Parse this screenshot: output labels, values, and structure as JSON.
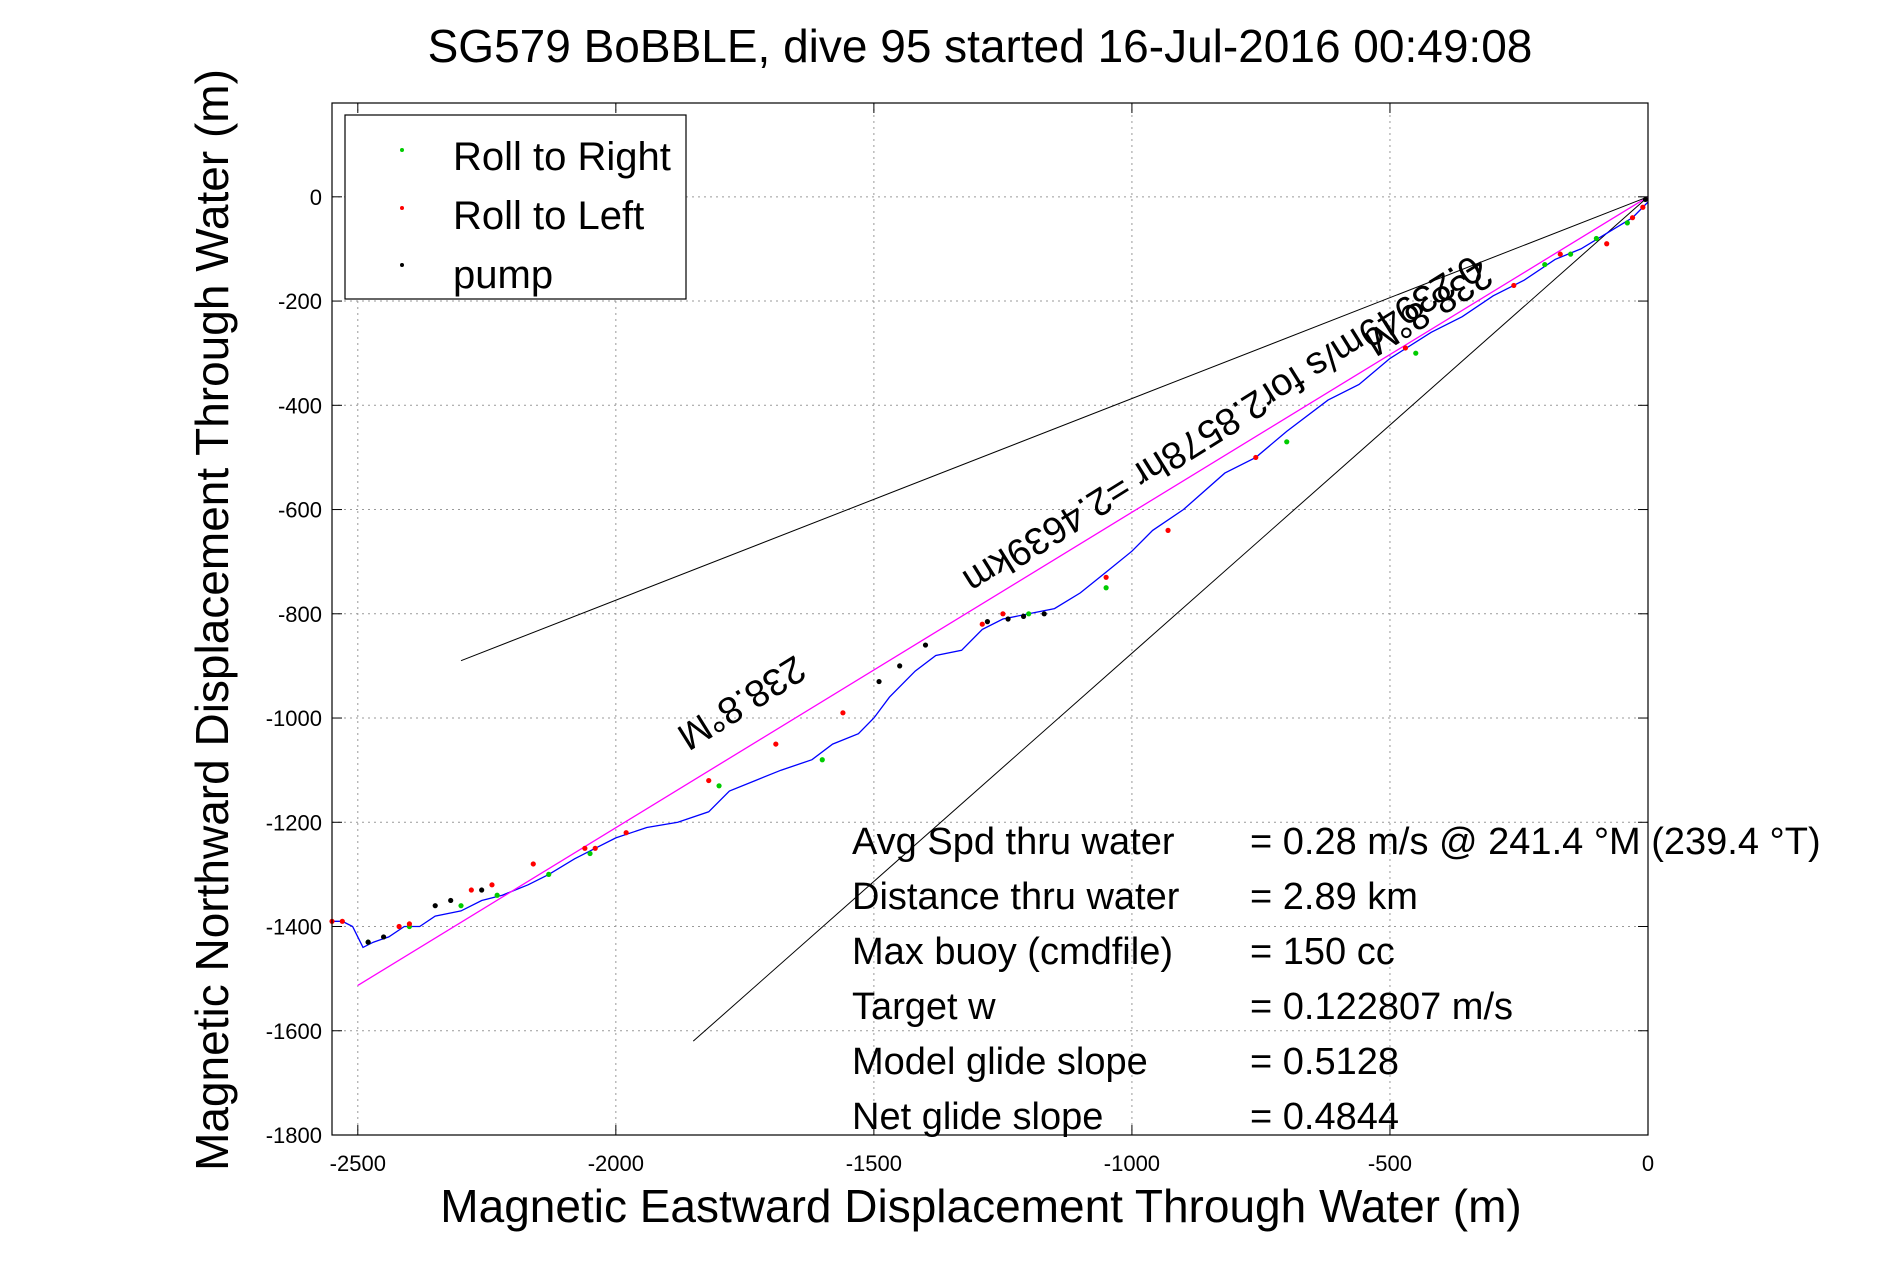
{
  "chart_data": {
    "type": "line",
    "title": "SG579 BoBBLE, dive 95 started 16-Jul-2016 00:49:08",
    "xlabel": "Magnetic Eastward Displacement Through Water (m)",
    "ylabel": "Magnetic Northward Displacement Through Water (m)",
    "xlim": [
      -2550,
      0
    ],
    "ylim": [
      -1800,
      180
    ],
    "xticks": [
      -2500,
      -2000,
      -1500,
      -1000,
      -500,
      0
    ],
    "yticks": [
      0,
      -200,
      -400,
      -600,
      -800,
      -1000,
      -1200,
      -1400,
      -1600,
      -1800
    ],
    "xtick_labels": [
      "-2500",
      "-2000",
      "-1500",
      "-1000",
      "-500",
      "0"
    ],
    "ytick_labels": [
      "0",
      "-200",
      "-400",
      "-600",
      "-800",
      "-1000",
      "-1200",
      "-1400",
      "-1600",
      "-1800"
    ],
    "grid": true,
    "legend_position": "top-left",
    "legend": [
      {
        "label": "Roll to Right",
        "color": "#00cc00"
      },
      {
        "label": "Roll to Left",
        "color": "#ff0000"
      },
      {
        "label": "pump",
        "color": "#000000"
      }
    ],
    "series": [
      {
        "name": "track",
        "color": "#0000ff",
        "x": [
          0,
          -30,
          -80,
          -130,
          -180,
          -240,
          -300,
          -360,
          -420,
          -500,
          -560,
          -620,
          -700,
          -760,
          -820,
          -900,
          -960,
          -1000,
          -1050,
          -1100,
          -1150,
          -1200,
          -1250,
          -1290,
          -1330,
          -1380,
          -1420,
          -1470,
          -1500,
          -1530,
          -1580,
          -1620,
          -1680,
          -1730,
          -1780,
          -1820,
          -1880,
          -1940,
          -2000,
          -2040,
          -2080,
          -2130,
          -2170,
          -2220,
          -2260,
          -2300,
          -2350,
          -2380,
          -2410,
          -2440,
          -2470,
          -2490,
          -2500,
          -2510,
          -2530,
          -2550
        ],
        "y": [
          -10,
          -40,
          -70,
          -100,
          -120,
          -160,
          -190,
          -230,
          -260,
          -310,
          -360,
          -390,
          -450,
          -500,
          -530,
          -600,
          -640,
          -680,
          -720,
          -760,
          -790,
          -800,
          -810,
          -830,
          -870,
          -880,
          -910,
          -960,
          -1000,
          -1030,
          -1050,
          -1080,
          -1100,
          -1120,
          -1140,
          -1180,
          -1200,
          -1210,
          -1230,
          -1250,
          -1270,
          -1300,
          -1320,
          -1340,
          -1350,
          -1370,
          -1380,
          -1400,
          -1400,
          -1420,
          -1430,
          -1440,
          -1420,
          -1400,
          -1390,
          -1390
        ]
      },
      {
        "name": "heading",
        "color": "#ff00ff",
        "x": [
          0,
          -2500
        ],
        "y": [
          0,
          -1513
        ]
      }
    ],
    "markers": {
      "roll_to_right": {
        "color": "#00cc00",
        "x": [
          -40,
          -100,
          -150,
          -200,
          -450,
          -700,
          -1050,
          -1200,
          -1600,
          -1800,
          -2050,
          -2130,
          -2230,
          -2300,
          -2400,
          -2480
        ],
        "y": [
          -50,
          -80,
          -110,
          -130,
          -300,
          -470,
          -750,
          -800,
          -1080,
          -1130,
          -1260,
          -1300,
          -1340,
          -1360,
          -1400,
          -1430
        ]
      },
      "roll_to_left": {
        "color": "#ff0000",
        "x": [
          -10,
          -30,
          -80,
          -170,
          -260,
          -470,
          -760,
          -930,
          -1050,
          -1250,
          -1290,
          -1560,
          -1690,
          -1820,
          -1980,
          -2040,
          -2060,
          -2160,
          -2240,
          -2280,
          -2400,
          -2420,
          -2530,
          -2550
        ],
        "y": [
          -20,
          -40,
          -90,
          -110,
          -170,
          -290,
          -500,
          -640,
          -730,
          -800,
          -820,
          -990,
          -1050,
          -1120,
          -1220,
          -1250,
          -1250,
          -1280,
          -1320,
          -1330,
          -1395,
          -1400,
          -1390,
          -1390
        ]
      },
      "pump": {
        "color": "#000000",
        "x": [
          -5,
          -1170,
          -1210,
          -1240,
          -1280,
          -1400,
          -1450,
          -1490,
          -2260,
          -2320,
          -2350,
          -2450,
          -2480
        ],
        "y": [
          -5,
          -800,
          -805,
          -810,
          -815,
          -860,
          -900,
          -930,
          -1330,
          -1350,
          -1360,
          -1420,
          -1430
        ]
      }
    },
    "direction_lines": [
      {
        "x": [
          0,
          -2300
        ],
        "y": [
          0,
          -890
        ]
      },
      {
        "x": [
          0,
          -1850
        ],
        "y": [
          0,
          -1620
        ]
      }
    ],
    "annotations": {
      "heading_top": "238.8°M",
      "heading_bottom": "238.8°M",
      "speed_summary": "0.23949m/s for2.8578hr =2.4639km"
    },
    "stats": [
      {
        "label": "Avg Spd thru water",
        "value": "=  0.28 m/s @ 241.4 °M (239.4 °T)"
      },
      {
        "label": "Distance thru water",
        "value": "=  2.89 km"
      },
      {
        "label": "Max buoy (cmdfile)",
        "value": "= 150 cc"
      },
      {
        "label": "Target w",
        "value": "= 0.122807 m/s"
      },
      {
        "label": "Model glide slope",
        "value": "= 0.5128"
      },
      {
        "label": "Net glide slope",
        "value": "= 0.4844"
      }
    ]
  }
}
